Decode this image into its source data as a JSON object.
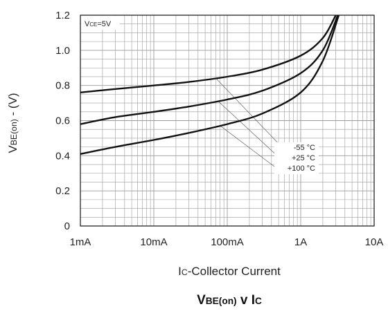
{
  "chart_data": {
    "type": "line",
    "title": "VBE(on) v IC",
    "title_parts": {
      "main1": "V",
      "sub1": "BE(on)",
      "mid": " v I",
      "sub2": "C"
    },
    "xlabel": "IC-Collector Current",
    "xlabel_parts": {
      "main": "I",
      "sub": "C",
      "rest": "-Collector Current"
    },
    "ylabel": "VBE(on) - (V)",
    "ylabel_parts": {
      "main": "V",
      "sub": "BE(on)",
      "rest": " - (V)"
    },
    "x_scale": "log",
    "xlim": [
      "1mA",
      "10A"
    ],
    "ylim": [
      0,
      1.2
    ],
    "x_ticks": [
      "1mA",
      "10mA",
      "100mA",
      "1A",
      "10A"
    ],
    "y_ticks": [
      "0",
      "0.2",
      "0.4",
      "0.6",
      "0.8",
      "1.0",
      "1.2"
    ],
    "grid": true,
    "condition": "VCE=5V",
    "condition_parts": {
      "main": "V",
      "sub": "CE",
      "rest": "=5V"
    },
    "series": [
      {
        "name": "-55 °C",
        "x_A": [
          0.001,
          0.003,
          0.01,
          0.03,
          0.1,
          0.3,
          1,
          2,
          3
        ],
        "y": [
          0.76,
          0.78,
          0.8,
          0.82,
          0.85,
          0.89,
          0.97,
          1.07,
          1.2
        ]
      },
      {
        "name": "+25 °C",
        "x_A": [
          0.001,
          0.003,
          0.01,
          0.03,
          0.1,
          0.3,
          1,
          2,
          3.2
        ],
        "y": [
          0.58,
          0.62,
          0.65,
          0.68,
          0.72,
          0.77,
          0.87,
          1.0,
          1.2
        ]
      },
      {
        "name": "+100 °C",
        "x_A": [
          0.001,
          0.003,
          0.01,
          0.03,
          0.1,
          0.3,
          1,
          2,
          3.3
        ],
        "y": [
          0.41,
          0.45,
          0.49,
          0.53,
          0.58,
          0.64,
          0.76,
          0.94,
          1.2
        ]
      }
    ],
    "legend_placement": "inline-annotation",
    "colors": {
      "line": "#111111",
      "grid": "#9a9a9a",
      "frame": "#111111"
    }
  }
}
